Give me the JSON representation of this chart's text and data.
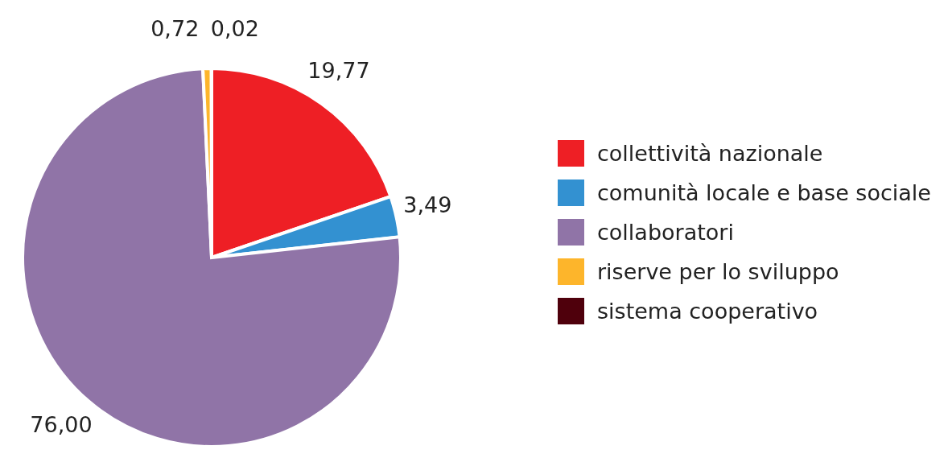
{
  "chart_data": {
    "type": "pie",
    "categories": [
      "collettività nazionale",
      "comunità locale e base sociale",
      "collaboratori",
      "riserve per lo sviluppo",
      "sistema cooperativo"
    ],
    "values": [
      19.77,
      3.49,
      76.0,
      0.72,
      0.02
    ],
    "colors": [
      "#ee1f25",
      "#3391d1",
      "#9074a7",
      "#fdb52b",
      "#4f000c"
    ],
    "value_labels": [
      "19,77",
      "3,49",
      "76,00",
      "0,72",
      "0,02"
    ],
    "legend": "right"
  }
}
